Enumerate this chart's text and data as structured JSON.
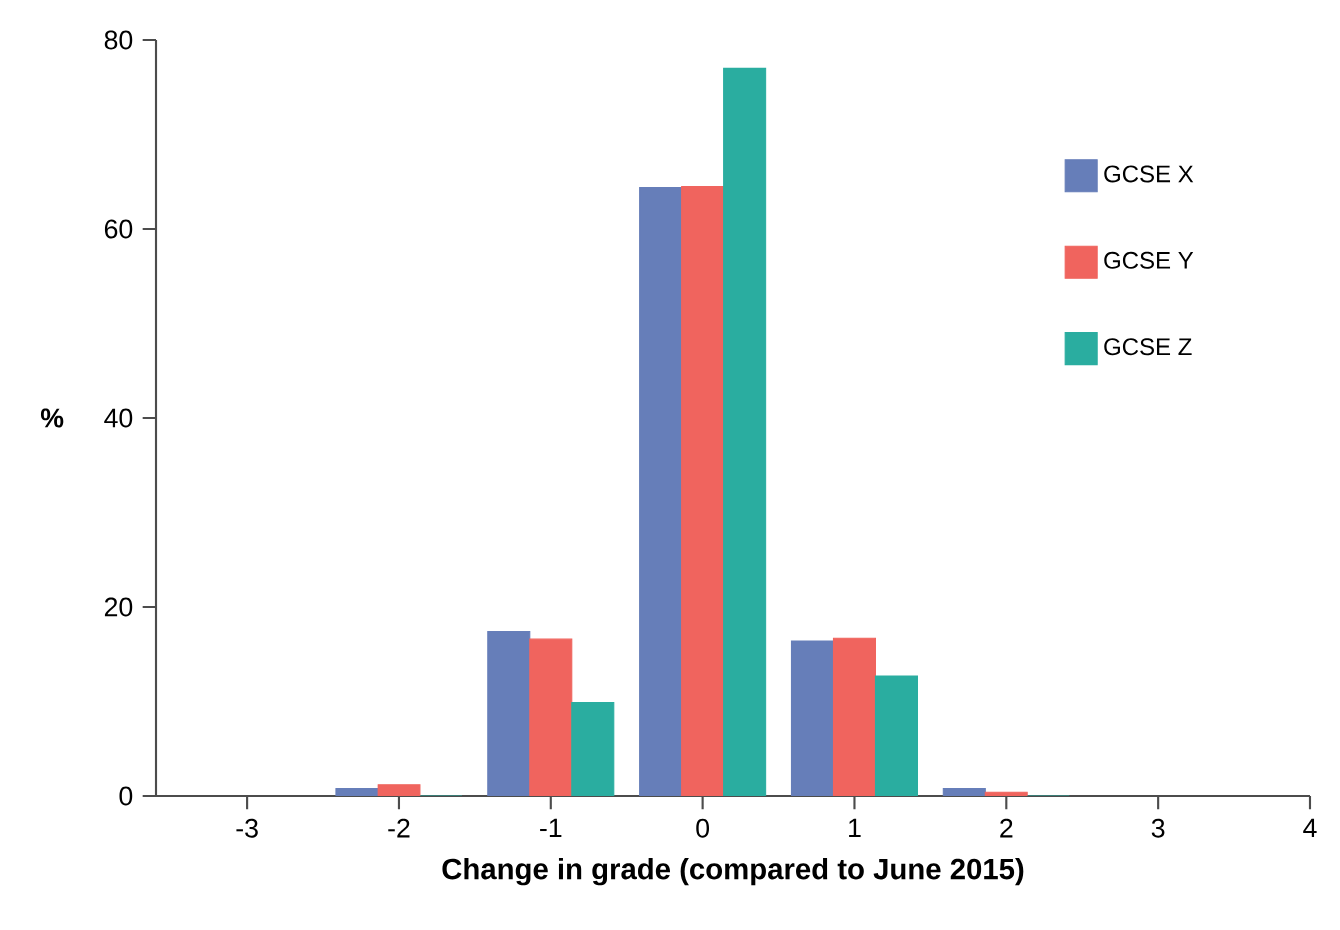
{
  "chart_data": {
    "type": "bar",
    "xlabel": "Change in grade (compared to June 2015)",
    "ylabel": "%",
    "x": [
      -2,
      -1,
      0,
      1,
      2
    ],
    "series": [
      {
        "name": "GCSE X",
        "color": "#667eb9",
        "values": [
          0.8,
          17.4,
          64.4,
          16.4,
          0.8
        ]
      },
      {
        "name": "GCSE Y",
        "color": "#f0645e",
        "values": [
          1.2,
          16.6,
          64.5,
          16.7,
          0.4
        ]
      },
      {
        "name": "GCSE Z",
        "color": "#2aada0",
        "values": [
          0,
          9.9,
          77,
          12.7,
          0
        ]
      }
    ],
    "xlim": [
      -3.6,
      4
    ],
    "xticks": [
      -3,
      -2,
      -1,
      0,
      1,
      2,
      3,
      4
    ],
    "ylim": [
      0,
      80
    ],
    "yticks": [
      0,
      20,
      40,
      60,
      80
    ],
    "legend": "top right"
  }
}
